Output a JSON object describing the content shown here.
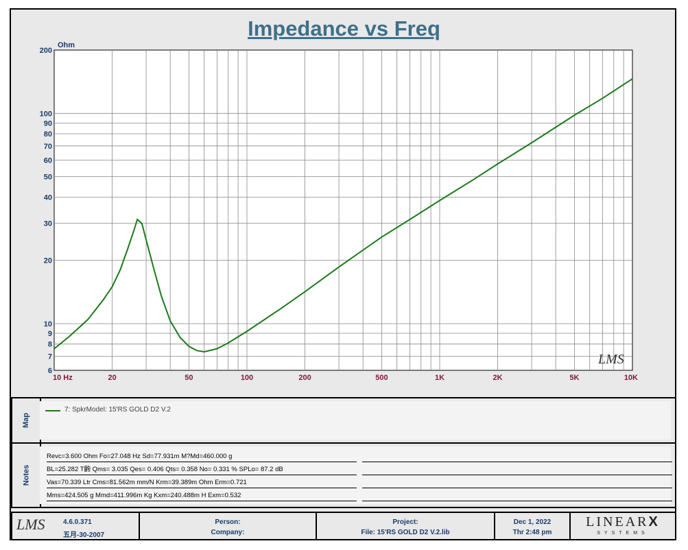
{
  "chart_data": {
    "type": "line",
    "title": "Impedance vs Freq",
    "ylabel": "Ohm",
    "xlabel": "",
    "x_scale": "log",
    "y_scale": "log",
    "xlim": [
      10,
      10000
    ],
    "ylim": [
      6,
      200
    ],
    "x_ticks": [
      {
        "v": 10,
        "label": "10  Hz"
      },
      {
        "v": 20,
        "label": "20"
      },
      {
        "v": 50,
        "label": "50"
      },
      {
        "v": 100,
        "label": "100"
      },
      {
        "v": 200,
        "label": "200"
      },
      {
        "v": 500,
        "label": "500"
      },
      {
        "v": 1000,
        "label": "1K"
      },
      {
        "v": 2000,
        "label": "2K"
      },
      {
        "v": 5000,
        "label": "5K"
      },
      {
        "v": 10000,
        "label": "10K"
      }
    ],
    "y_ticks": [
      {
        "v": 6,
        "label": "6"
      },
      {
        "v": 7,
        "label": "7"
      },
      {
        "v": 8,
        "label": "8"
      },
      {
        "v": 9,
        "label": "9"
      },
      {
        "v": 10,
        "label": "10"
      },
      {
        "v": 20,
        "label": "20"
      },
      {
        "v": 30,
        "label": "30"
      },
      {
        "v": 40,
        "label": "40"
      },
      {
        "v": 50,
        "label": "50"
      },
      {
        "v": 60,
        "label": "60"
      },
      {
        "v": 70,
        "label": "70"
      },
      {
        "v": 80,
        "label": "80"
      },
      {
        "v": 90,
        "label": "90"
      },
      {
        "v": 100,
        "label": "100"
      },
      {
        "v": 200,
        "label": "200"
      }
    ],
    "grid": true,
    "series": [
      {
        "name": "7: SpkrModel: 15'RS GOLD D2 V.2",
        "color": "#1a7a1a",
        "x": [
          10,
          12,
          15,
          18,
          20,
          22,
          24,
          26,
          27,
          28.5,
          30,
          33,
          36,
          40,
          45,
          50,
          55,
          60,
          70,
          80,
          100,
          150,
          200,
          300,
          500,
          700,
          1000,
          1500,
          2000,
          3000,
          5000,
          7000,
          10000
        ],
        "y": [
          7.6,
          8.7,
          10.5,
          13.0,
          15.0,
          18.0,
          22.5,
          28.0,
          31.3,
          30.0,
          25.0,
          18.0,
          13.5,
          10.3,
          8.6,
          7.8,
          7.45,
          7.35,
          7.6,
          8.1,
          9.2,
          11.8,
          14.2,
          18.6,
          25.8,
          31.3,
          38.5,
          48.5,
          57.5,
          72.5,
          98.0,
          118.0,
          146.0
        ]
      }
    ]
  },
  "watermark": "LMS",
  "map": {
    "label": "Map",
    "legend": "7: SpkrModel: 15'RS GOLD D2 V.2"
  },
  "notes": {
    "label": "Notes",
    "lines": [
      "Revc=3.600 Ohm  Fo=27.048 Hz  Sd=77.931m M?Md=460.000 g",
      "BL=25.282 T齣  Qms= 3.035  Qes= 0.406  Qts= 0.358  No= 0.331 %  SPLo= 87.2 dB",
      "Vas=70.339 Ltr  Cms=81.562m mm/N  Krm=39.389m Ohm  Erm=0.721",
      "Mms=424.505 g  Mmd=411.996m Kg  Kxm=240.488m H  Exm=0.532"
    ]
  },
  "footer": {
    "logo": "LMS",
    "version": "4.6.0.371",
    "version_date": "五月-30-2007",
    "person_label": "Person:",
    "company_label": "Company:",
    "project_label": "Project:",
    "file_label": "File: 15'RS GOLD D2 V.2.lib",
    "date": "Dec  1, 2022",
    "time": "Thr  2:48 pm",
    "brand_top": "LINEAR",
    "brand_x": "X",
    "brand_bottom": "SYSTEMS"
  }
}
